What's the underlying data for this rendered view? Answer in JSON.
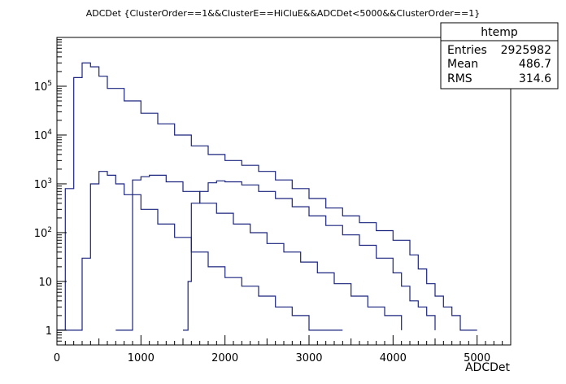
{
  "chart_data": {
    "type": "histogram",
    "title": "ADCDet {ClusterOrder==1&&ClusterE==HiCluE&&ADCDet<5000&&ClusterOrder==1}",
    "xlabel": "ADCDet",
    "ylabel": "",
    "xlim": [
      0,
      5400
    ],
    "ylim": [
      0.5,
      1000000
    ],
    "yscale": "log",
    "grid": false,
    "x_ticks": [
      0,
      1000,
      2000,
      3000,
      4000,
      5000
    ],
    "x_tick_labels": [
      "0",
      "1000",
      "2000",
      "3000",
      "4000",
      "5000"
    ],
    "y_ticks": [
      {
        "value": 1,
        "base": "1",
        "exp": ""
      },
      {
        "value": 10,
        "base": "10",
        "exp": ""
      },
      {
        "value": 100,
        "base": "10",
        "exp": "2"
      },
      {
        "value": 1000,
        "base": "10",
        "exp": "3"
      },
      {
        "value": 10000,
        "base": "10",
        "exp": "4"
      },
      {
        "value": 100000,
        "base": "10",
        "exp": "5"
      }
    ],
    "series": [
      {
        "points": [
          [
            0,
            1
          ],
          [
            100,
            800
          ],
          [
            200,
            150000
          ],
          [
            300,
            300000
          ],
          [
            400,
            250000
          ],
          [
            500,
            160000
          ],
          [
            600,
            90000
          ],
          [
            800,
            50000
          ],
          [
            1000,
            28000
          ],
          [
            1200,
            17000
          ],
          [
            1400,
            10000
          ],
          [
            1600,
            6000
          ],
          [
            1800,
            4000
          ],
          [
            2000,
            3000
          ],
          [
            2200,
            2400
          ],
          [
            2400,
            1800
          ],
          [
            2600,
            1200
          ],
          [
            2800,
            800
          ],
          [
            3000,
            500
          ],
          [
            3200,
            320
          ],
          [
            3400,
            220
          ],
          [
            3600,
            160
          ],
          [
            3800,
            110
          ],
          [
            4000,
            70
          ],
          [
            4200,
            35
          ],
          [
            4300,
            18
          ],
          [
            4400,
            9
          ],
          [
            4500,
            5
          ],
          [
            4600,
            3
          ],
          [
            4700,
            2
          ],
          [
            4800,
            1
          ],
          [
            4900,
            1
          ],
          [
            5000,
            1
          ]
        ]
      },
      {
        "points": [
          [
            0,
            1
          ],
          [
            200,
            1
          ],
          [
            300,
            30
          ],
          [
            400,
            1000
          ],
          [
            500,
            1800
          ],
          [
            600,
            1500
          ],
          [
            700,
            1000
          ],
          [
            800,
            600
          ],
          [
            1000,
            300
          ],
          [
            1200,
            150
          ],
          [
            1400,
            80
          ],
          [
            1600,
            40
          ],
          [
            1800,
            20
          ],
          [
            2000,
            12
          ],
          [
            2200,
            8
          ],
          [
            2400,
            5
          ],
          [
            2600,
            3
          ],
          [
            2800,
            2
          ],
          [
            3000,
            1
          ],
          [
            3200,
            1
          ],
          [
            3400,
            1
          ]
        ]
      },
      {
        "points": [
          [
            700,
            1
          ],
          [
            900,
            1200
          ],
          [
            1000,
            1400
          ],
          [
            1100,
            1500
          ],
          [
            1300,
            1100
          ],
          [
            1500,
            700
          ],
          [
            1700,
            400
          ],
          [
            1900,
            250
          ],
          [
            2100,
            150
          ],
          [
            2300,
            100
          ],
          [
            2500,
            60
          ],
          [
            2700,
            40
          ],
          [
            2900,
            25
          ],
          [
            3100,
            15
          ],
          [
            3300,
            9
          ],
          [
            3500,
            5
          ],
          [
            3700,
            3
          ],
          [
            3900,
            2
          ],
          [
            4100,
            1
          ]
        ]
      },
      {
        "points": [
          [
            1500,
            1
          ],
          [
            1560,
            10
          ],
          [
            1600,
            400
          ],
          [
            1700,
            700
          ],
          [
            1800,
            1050
          ],
          [
            1900,
            1150
          ],
          [
            2000,
            1100
          ],
          [
            2200,
            950
          ],
          [
            2400,
            700
          ],
          [
            2600,
            500
          ],
          [
            2800,
            340
          ],
          [
            3000,
            220
          ],
          [
            3200,
            140
          ],
          [
            3400,
            90
          ],
          [
            3600,
            55
          ],
          [
            3800,
            30
          ],
          [
            4000,
            15
          ],
          [
            4100,
            8
          ],
          [
            4200,
            4
          ],
          [
            4300,
            3
          ],
          [
            4400,
            2
          ],
          [
            4500,
            1
          ]
        ]
      }
    ]
  },
  "stats": {
    "name": "htemp",
    "rows": [
      {
        "label": "Entries",
        "value": "2925982"
      },
      {
        "label": "Mean",
        "value": "486.7"
      },
      {
        "label": "RMS",
        "value": "314.6"
      }
    ]
  }
}
